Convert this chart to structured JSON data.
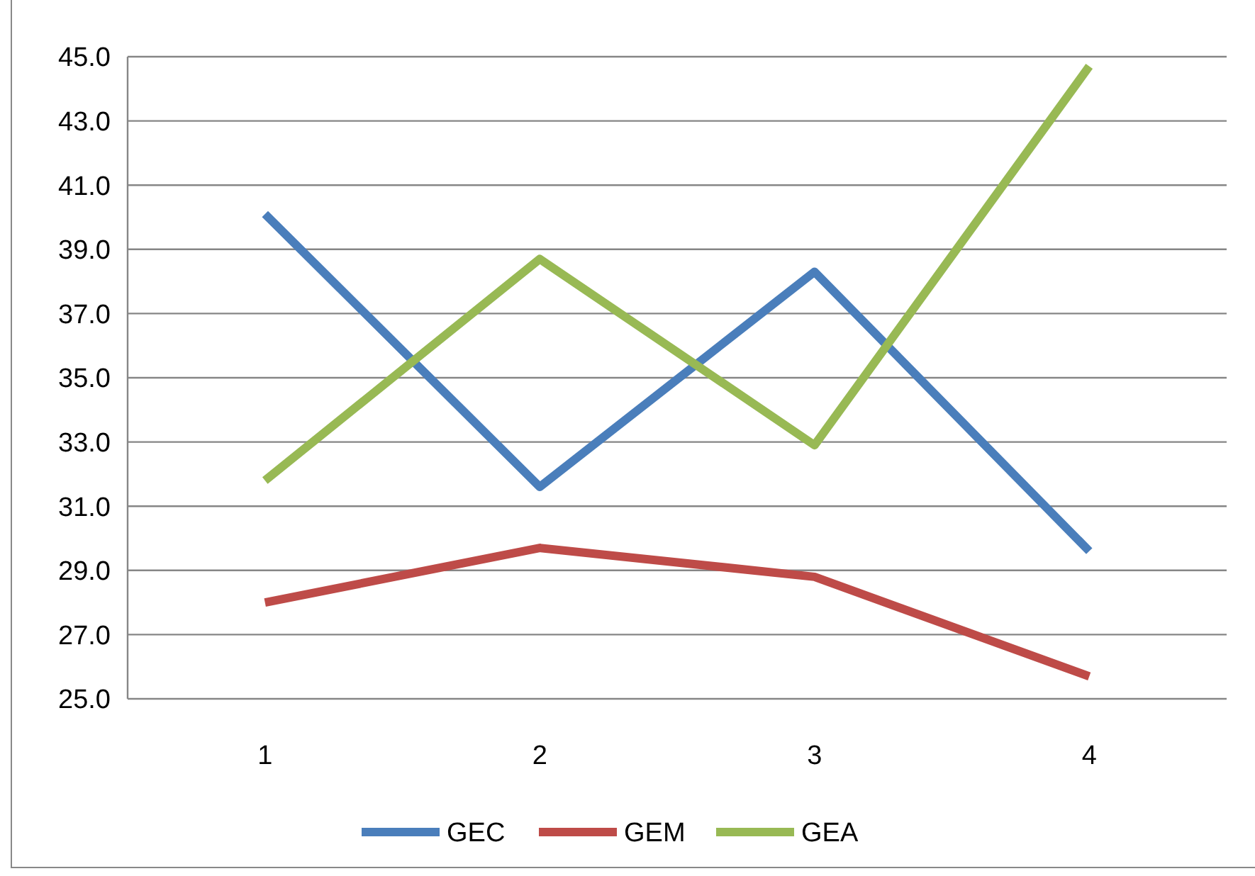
{
  "chart_data": {
    "type": "line",
    "categories": [
      "1",
      "2",
      "3",
      "4"
    ],
    "series": [
      {
        "name": "GEC",
        "color": "#4a7ebb",
        "values": [
          40.1,
          31.6,
          38.3,
          29.6
        ]
      },
      {
        "name": "GEM",
        "color": "#be4b48",
        "values": [
          28.0,
          29.7,
          28.8,
          25.7
        ]
      },
      {
        "name": "GEA",
        "color": "#98b954",
        "values": [
          31.8,
          38.7,
          32.9,
          44.7
        ]
      }
    ],
    "ylim": [
      25,
      45
    ],
    "yticks": [
      {
        "value": 25,
        "label": "25.0"
      },
      {
        "value": 27,
        "label": "27.0"
      },
      {
        "value": 29,
        "label": "29.0"
      },
      {
        "value": 31,
        "label": "31.0"
      },
      {
        "value": 33,
        "label": "33.0"
      },
      {
        "value": 35,
        "label": "35.0"
      },
      {
        "value": 37,
        "label": "37.0"
      },
      {
        "value": 39,
        "label": "39.0"
      },
      {
        "value": 41,
        "label": "41.0"
      },
      {
        "value": 43,
        "label": "43.0"
      },
      {
        "value": 45,
        "label": "45.0"
      }
    ],
    "grid": "y",
    "legend": "bottom",
    "marker": "none",
    "line_style": "solid"
  }
}
